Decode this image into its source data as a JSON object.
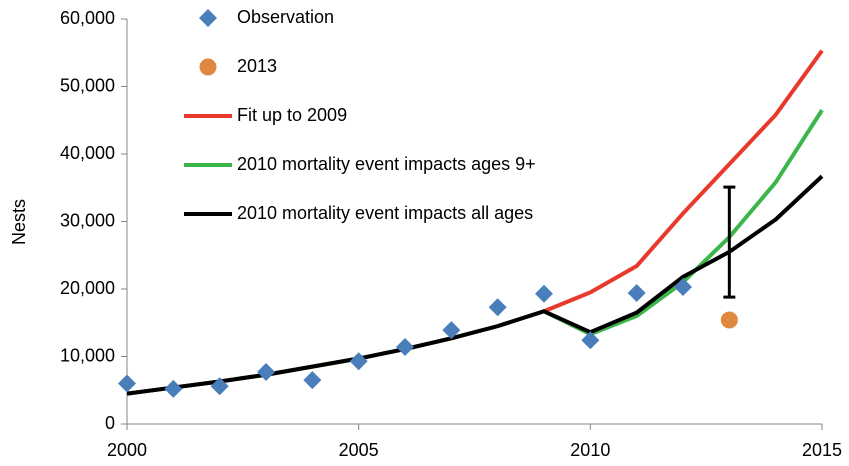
{
  "chart_data": {
    "type": "line",
    "y_label": "Nests",
    "x": [
      2000,
      2001,
      2002,
      2003,
      2004,
      2005,
      2006,
      2007,
      2008,
      2009,
      2010,
      2011,
      2012,
      2013,
      2014,
      2015
    ],
    "xlim": [
      2000,
      2015
    ],
    "xticks": [
      2000,
      2005,
      2010,
      2015
    ],
    "ylim": [
      0,
      60000
    ],
    "yticks": [
      0,
      {
        "value": 10000,
        "label": "10,000"
      },
      {
        "value": 20000,
        "label": "20,000"
      },
      {
        "value": 30000,
        "label": "30,000"
      },
      {
        "value": 40000,
        "label": "40,000"
      },
      {
        "value": 50000,
        "label": "50,000"
      },
      {
        "value": 60000,
        "label": "60,000"
      }
    ],
    "series": [
      {
        "name": "Observation",
        "type": "scatter",
        "marker": "diamond",
        "color": "#4a7ebb",
        "values": [
          6000,
          5200,
          5600,
          7700,
          6500,
          9300,
          11400,
          13900,
          17300,
          19300,
          12400,
          19400,
          20300,
          null,
          null,
          null
        ]
      },
      {
        "name": "2013",
        "type": "scatter",
        "marker": "circle",
        "color": "#e0883f",
        "x": [
          2013
        ],
        "values": [
          15400
        ]
      },
      {
        "name": "Fit up to 2009",
        "type": "line",
        "color": "#e83a2c",
        "values": [
          4500,
          5400,
          6300,
          7300,
          8500,
          9700,
          11100,
          12700,
          14500,
          16700,
          19500,
          23400,
          31200,
          38500,
          45800,
          55300
        ]
      },
      {
        "name": "2010 mortality event impacts ages 9+",
        "type": "line",
        "color": "#3cb54a",
        "values": [
          4500,
          5400,
          6300,
          7300,
          8500,
          9700,
          11100,
          12700,
          14500,
          16700,
          13300,
          16000,
          21000,
          27700,
          35800,
          46500
        ]
      },
      {
        "name": "2010 mortality event impacts all ages",
        "type": "line",
        "color": "#000000",
        "values": [
          4500,
          5400,
          6300,
          7300,
          8500,
          9700,
          11100,
          12700,
          14500,
          16700,
          13600,
          16500,
          21800,
          25500,
          30300,
          36700
        ]
      }
    ],
    "error_bar": {
      "x": 2013,
      "low": 18800,
      "high": 35100,
      "color": "#000000"
    }
  }
}
